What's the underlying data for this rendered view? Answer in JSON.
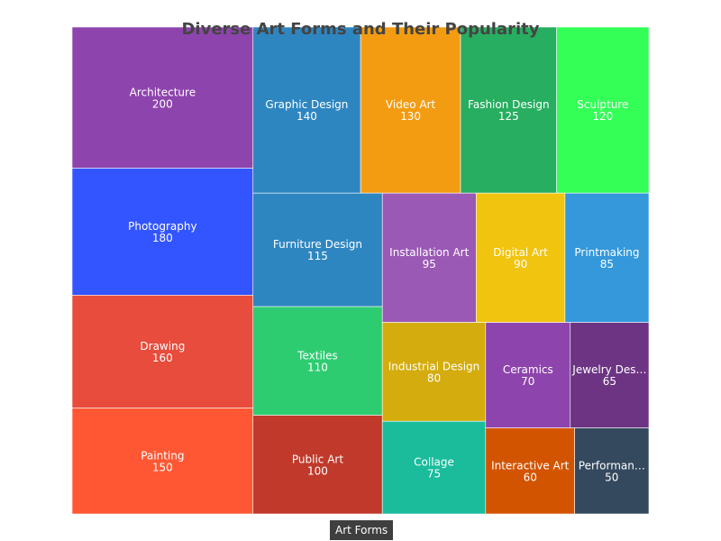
{
  "chart_data": {
    "type": "treemap",
    "title": "Diverse Art Forms and Their Popularity",
    "root_label": "Art Forms",
    "items": [
      {
        "name": "Architecture",
        "display_name": "Architecture",
        "value": 200,
        "color": "#8e44ad"
      },
      {
        "name": "Photography",
        "display_name": "Photography",
        "value": 180,
        "color": "#3355ff"
      },
      {
        "name": "Drawing",
        "display_name": "Drawing",
        "value": 160,
        "color": "#e74c3c"
      },
      {
        "name": "Painting",
        "display_name": "Painting",
        "value": 150,
        "color": "#ff5733"
      },
      {
        "name": "Graphic Design",
        "display_name": "Graphic Design",
        "value": 140,
        "color": "#2e86c1"
      },
      {
        "name": "Video Art",
        "display_name": "Video Art",
        "value": 130,
        "color": "#f39c12"
      },
      {
        "name": "Fashion Design",
        "display_name": "Fashion Design",
        "value": 125,
        "color": "#27ae60"
      },
      {
        "name": "Sculpture",
        "display_name": "Sculpture",
        "value": 120,
        "color": "#33ff57"
      },
      {
        "name": "Furniture Design",
        "display_name": "Furniture Design",
        "value": 115,
        "color": "#2e86c1"
      },
      {
        "name": "Textiles",
        "display_name": "Textiles",
        "value": 110,
        "color": "#2ecc71"
      },
      {
        "name": "Public Art",
        "display_name": "Public Art",
        "value": 100,
        "color": "#c0392b"
      },
      {
        "name": "Installation Art",
        "display_name": "Installation Art",
        "value": 95,
        "color": "#9b59b6"
      },
      {
        "name": "Digital Art",
        "display_name": "Digital Art",
        "value": 90,
        "color": "#f1c40f"
      },
      {
        "name": "Printmaking",
        "display_name": "Printmaking",
        "value": 85,
        "color": "#3498db"
      },
      {
        "name": "Industrial Design",
        "display_name": "Industrial Design",
        "value": 80,
        "color": "#d4ac0d"
      },
      {
        "name": "Collage",
        "display_name": "Collage",
        "value": 75,
        "color": "#1abc9c"
      },
      {
        "name": "Ceramics",
        "display_name": "Ceramics",
        "value": 70,
        "color": "#8e44ad"
      },
      {
        "name": "Jewelry Design",
        "display_name": "Jewelry Des…",
        "value": 65,
        "color": "#6c3483"
      },
      {
        "name": "Interactive Art",
        "display_name": "Interactive Art",
        "value": 60,
        "color": "#d35400"
      },
      {
        "name": "Performance Art",
        "display_name": "Performan…",
        "value": 50,
        "color": "#34495e"
      }
    ]
  }
}
